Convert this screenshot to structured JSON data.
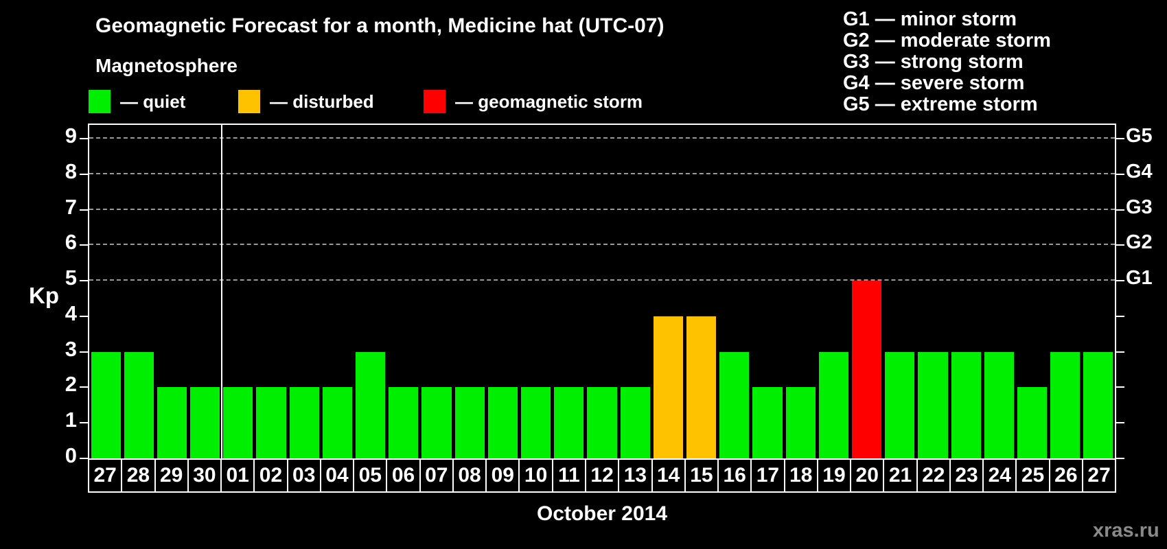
{
  "header": {
    "title": "Geomagnetic Forecast for a month, Medicine hat (UTC-07)",
    "legend_title": "Magnetosphere",
    "legend_items": [
      {
        "name": "quiet",
        "label": "— quiet",
        "color": "#00ef00"
      },
      {
        "name": "disturbed",
        "label": "— disturbed",
        "color": "#ffc200"
      },
      {
        "name": "storm",
        "label": "— geomagnetic storm",
        "color": "#ff0000"
      }
    ],
    "g_scale_legend": [
      "G1 — minor storm",
      "G2 — moderate storm",
      "G3 — strong storm",
      "G4 — severe storm",
      "G5 — extreme storm"
    ]
  },
  "chart_data": {
    "type": "bar",
    "title": "Geomagnetic Forecast for a month, Medicine hat (UTC-07)",
    "xlabel": "October 2014",
    "ylabel": "Kp",
    "ylim": [
      0,
      9
    ],
    "yticks": [
      0,
      1,
      2,
      3,
      4,
      5,
      6,
      7,
      8,
      9
    ],
    "gridlines_at_kp": [
      5,
      6,
      7,
      8,
      9
    ],
    "grid": "dashed-horizontal",
    "legend_position": "top",
    "right_axis": [
      {
        "label": "G1",
        "kp": 5
      },
      {
        "label": "G2",
        "kp": 6
      },
      {
        "label": "G3",
        "kp": 7
      },
      {
        "label": "G4",
        "kp": 8
      },
      {
        "label": "G5",
        "kp": 9
      }
    ],
    "month_separator_after_index": 3,
    "categories": [
      "27",
      "28",
      "29",
      "30",
      "01",
      "02",
      "03",
      "04",
      "05",
      "06",
      "07",
      "08",
      "09",
      "10",
      "11",
      "12",
      "13",
      "14",
      "15",
      "16",
      "17",
      "18",
      "19",
      "20",
      "21",
      "22",
      "23",
      "24",
      "25",
      "26",
      "27"
    ],
    "values": [
      3,
      3,
      2,
      2,
      2,
      2,
      2,
      2,
      3,
      2,
      2,
      2,
      2,
      2,
      2,
      2,
      2,
      4,
      4,
      3,
      2,
      2,
      3,
      5,
      3,
      3,
      3,
      3,
      2,
      3,
      3
    ],
    "statuses": [
      "quiet",
      "quiet",
      "quiet",
      "quiet",
      "quiet",
      "quiet",
      "quiet",
      "quiet",
      "quiet",
      "quiet",
      "quiet",
      "quiet",
      "quiet",
      "quiet",
      "quiet",
      "quiet",
      "quiet",
      "disturbed",
      "disturbed",
      "quiet",
      "quiet",
      "quiet",
      "quiet",
      "storm",
      "quiet",
      "quiet",
      "quiet",
      "quiet",
      "quiet",
      "quiet",
      "quiet"
    ],
    "status_colors": {
      "quiet": "#00ef00",
      "disturbed": "#ffc200",
      "storm": "#ff0000"
    }
  },
  "footer": {
    "xlabel": "October 2014",
    "watermark": "xras.ru"
  }
}
